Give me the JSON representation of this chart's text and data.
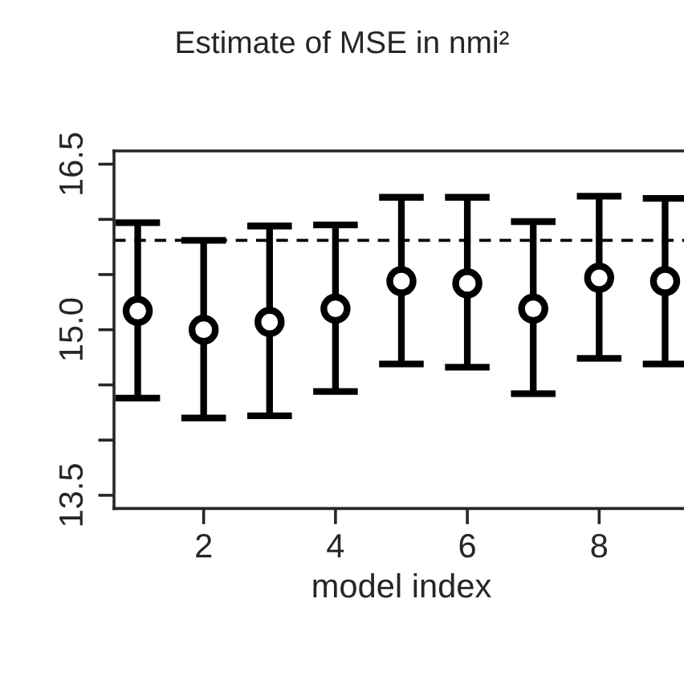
{
  "chart_data": {
    "type": "scatter",
    "title": "Estimate of MSE in nmi²",
    "xlabel": "model index",
    "x": [
      1,
      2,
      3,
      4,
      5,
      6,
      7,
      8,
      9
    ],
    "values": [
      15.17,
      15.0,
      15.07,
      15.19,
      15.44,
      15.42,
      15.19,
      15.47,
      15.44
    ],
    "errors": [
      [
        14.38,
        15.97
      ],
      [
        14.2,
        15.81
      ],
      [
        14.22,
        15.94
      ],
      [
        14.44,
        15.95
      ],
      [
        14.69,
        16.2
      ],
      [
        14.66,
        16.2
      ],
      [
        14.42,
        15.98
      ],
      [
        14.74,
        16.21
      ],
      [
        14.69,
        16.19
      ]
    ],
    "color": "#000000",
    "marker": "circle",
    "xlim": [
      0.64,
      9.36
    ],
    "xticks": [
      2,
      4,
      6,
      8
    ],
    "ylim": [
      13.38,
      16.62
    ],
    "yticks": [
      13.5,
      {
        "value": 14.0,
        "label": null
      },
      {
        "value": 14.5,
        "label": null
      },
      {
        "value": 15.0,
        "label": "15.0"
      },
      {
        "value": 15.5,
        "label": null
      },
      {
        "value": 16.0,
        "label": null
      },
      16.5
    ],
    "ref_lines": [
      {
        "axis": "y",
        "value": 15.81,
        "line_style": "dashed",
        "color": "#000000"
      }
    ],
    "grid": false,
    "legend": false
  }
}
